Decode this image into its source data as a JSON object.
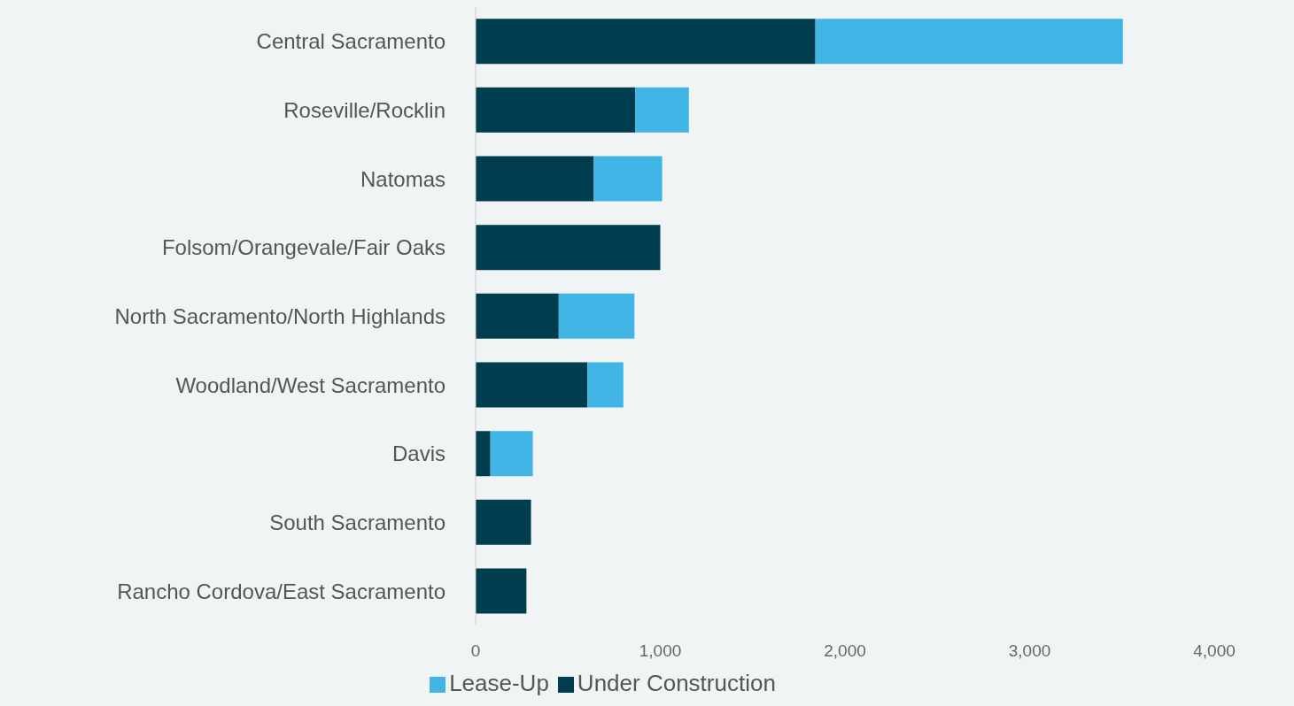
{
  "chart_data": {
    "type": "bar",
    "orientation": "horizontal",
    "stacked": true,
    "categories": [
      "Central Sacramento",
      "Roseville/Rocklin",
      "Natomas",
      "Folsom/Orangevale/Fair Oaks",
      "North Sacramento/North Highlands",
      "Woodland/West Sacramento",
      "Davis",
      "South Sacramento",
      "Rancho Cordova/East Sacramento"
    ],
    "series": [
      {
        "name": "Under Construction",
        "color": "#003d4f",
        "values": [
          1840,
          865,
          640,
          1000,
          450,
          605,
          80,
          300,
          275
        ]
      },
      {
        "name": "Lease-Up",
        "color": "#41b6e6",
        "values": [
          1665,
          290,
          370,
          0,
          410,
          195,
          230,
          0,
          0
        ]
      }
    ],
    "xlim": [
      0,
      4000
    ],
    "xticks": [
      0,
      {
        "value": 1000,
        "label": "1,000"
      },
      {
        "value": 2000,
        "label": "2,000"
      },
      {
        "value": 3000,
        "label": "3,000"
      },
      {
        "value": 4000,
        "label": "4,000"
      }
    ],
    "grid": false,
    "legend": "bottom"
  }
}
